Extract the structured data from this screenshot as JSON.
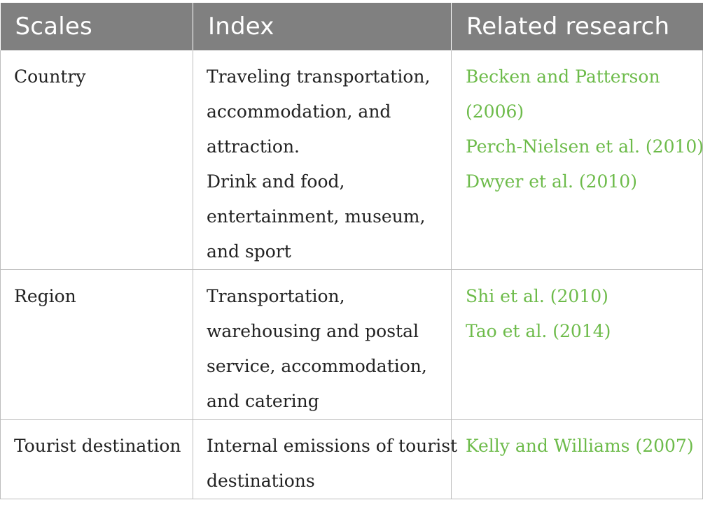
{
  "table": {
    "headers": [
      "Scales",
      "Index",
      "Related research"
    ],
    "rows": [
      {
        "scale": "Country",
        "index_lines": [
          "Traveling transportation,",
          "accommodation, and",
          "attraction.",
          "Drink and food,",
          "entertainment, museum,",
          "and sport"
        ],
        "research": [
          "Becken and Patterson",
          "(2006)",
          "Perch-Nielsen et al. (2010)",
          "Dwyer et al. (2010)"
        ]
      },
      {
        "scale": "Region",
        "index_lines": [
          "Transportation,",
          "warehousing and postal",
          "service, accommodation,",
          "and catering"
        ],
        "research": [
          "Shi et al. (2010)",
          "Tao et al. (2014)"
        ]
      },
      {
        "scale": "Tourist destination",
        "index_lines": [
          "Internal emissions of tourist",
          "destinations"
        ],
        "research": [
          "Kelly and Williams (2007)"
        ]
      }
    ]
  },
  "colors": {
    "header_bg": "#808080",
    "header_text": "#ffffff",
    "link": "#6dbb4a",
    "border": "#bdbdbd"
  }
}
